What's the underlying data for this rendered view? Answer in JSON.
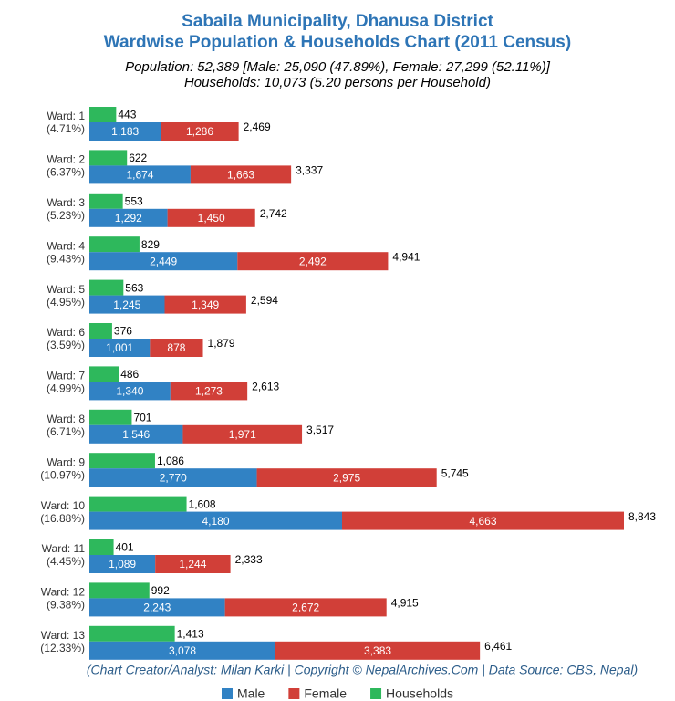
{
  "chart_data": {
    "type": "bar",
    "orientation": "horizontal",
    "title": [
      "Sabaila Municipality, Dhanusa District",
      "Wardwise Population & Households Chart (2011 Census)"
    ],
    "subtitle": [
      "Population: 52,389 [Male: 25,090 (47.89%), Female: 27,299 (52.11%)]",
      "Households: 10,073 (5.20 persons per Household)"
    ],
    "categories": [
      "Ward: 1",
      "Ward: 2",
      "Ward: 3",
      "Ward: 4",
      "Ward: 5",
      "Ward: 6",
      "Ward: 7",
      "Ward: 8",
      "Ward: 9",
      "Ward: 10",
      "Ward: 11",
      "Ward: 12",
      "Ward: 13"
    ],
    "category_shares": [
      "(4.71%)",
      "(6.37%)",
      "(5.23%)",
      "(9.43%)",
      "(4.95%)",
      "(3.59%)",
      "(4.99%)",
      "(6.71%)",
      "(10.97%)",
      "(16.88%)",
      "(4.45%)",
      "(9.38%)",
      "(12.33%)"
    ],
    "series": [
      {
        "name": "Male",
        "color": "#3182c4",
        "stack": "population",
        "values": [
          1183,
          1674,
          1292,
          2449,
          1245,
          1001,
          1340,
          1546,
          2770,
          4180,
          1089,
          2243,
          3078
        ],
        "value_labels": [
          "1,183",
          "1,674",
          "1,292",
          "2,449",
          "1,245",
          "1,001",
          "1,340",
          "1,546",
          "2,770",
          "4,180",
          "1,089",
          "2,243",
          "3,078"
        ]
      },
      {
        "name": "Female",
        "color": "#d13f38",
        "stack": "population",
        "values": [
          1286,
          1663,
          1450,
          2492,
          1349,
          878,
          1273,
          1971,
          2975,
          4663,
          1244,
          2672,
          3383
        ],
        "value_labels": [
          "1,286",
          "1,663",
          "1,450",
          "2,492",
          "1,349",
          "878",
          "1,273",
          "1,971",
          "2,975",
          "4,663",
          "1,244",
          "2,672",
          "3,383"
        ]
      },
      {
        "name": "Households",
        "color": "#2eb85c",
        "stack": "households",
        "values": [
          443,
          622,
          553,
          829,
          563,
          376,
          486,
          701,
          1086,
          1608,
          401,
          992,
          1413
        ],
        "value_labels": [
          "443",
          "622",
          "553",
          "829",
          "563",
          "376",
          "486",
          "701",
          "1,086",
          "1,608",
          "401",
          "992",
          "1,413"
        ]
      }
    ],
    "totals": {
      "values": [
        2469,
        3337,
        2742,
        4941,
        2594,
        1879,
        2613,
        3517,
        5745,
        8843,
        2333,
        4915,
        6461
      ],
      "value_labels": [
        "2,469",
        "3,337",
        "2,742",
        "4,941",
        "2,594",
        "1,879",
        "2,613",
        "3,517",
        "5,745",
        "8,843",
        "2,333",
        "4,915",
        "6,461"
      ]
    },
    "source": "(Chart Creator/Analyst: Milan Karki | Copyright © NepalArchives.Com | Data Source: CBS, Nepal)",
    "legend": "bottom"
  }
}
